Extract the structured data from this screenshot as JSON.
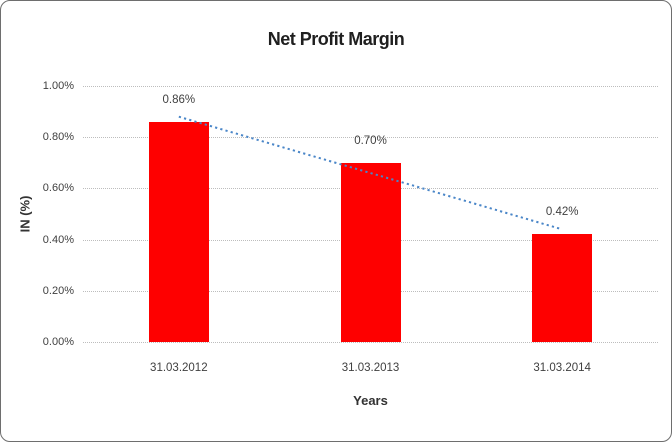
{
  "window": {
    "background": "#ffffff",
    "border_color": "#6e6e6e"
  },
  "chart_data": {
    "type": "bar",
    "title": "Net Profit Margin",
    "categories": [
      "31.03.2012",
      "31.03.2013",
      "31.03.2014"
    ],
    "values": [
      0.86,
      0.7,
      0.42
    ],
    "value_labels": [
      "0.86%",
      "0.70%",
      "0.42%"
    ],
    "xlabel": "Years",
    "ylabel": "IN (%)",
    "ylim": [
      0,
      1.0
    ],
    "ytick_step": 0.2,
    "ytick_labels": [
      "0.00%",
      "0.20%",
      "0.40%",
      "0.60%",
      "0.80%",
      "1.00%"
    ],
    "grid": true,
    "legend": "none",
    "bar_color": "#fe0000",
    "gridline_color": "#bdbdbd",
    "label_color": "#404040",
    "trendline": {
      "type": "linear",
      "style": "dotted",
      "color": "#4a86c8"
    }
  }
}
